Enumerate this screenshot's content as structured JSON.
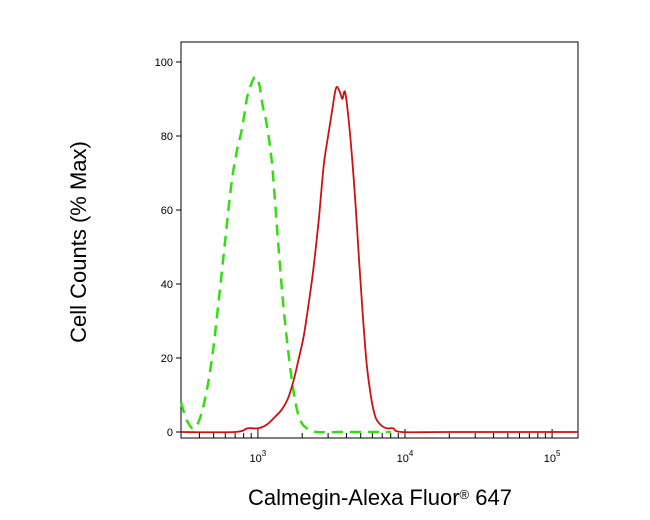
{
  "chart_data": {
    "type": "line",
    "title": "",
    "xlabel": "Calmegin-Alexa Fluor",
    "xlabel_mark": "®",
    "xlabel_suffix": " 647",
    "ylabel": "Cell Counts (% Max)",
    "x_scale": "log",
    "xlim": [
      300,
      150000
    ],
    "ylim": [
      0,
      100
    ],
    "y_ticks": [
      0,
      20,
      40,
      60,
      80,
      100
    ],
    "x_major_ticks": [
      {
        "value": 1000,
        "base": "10",
        "exp": "3"
      },
      {
        "value": 10000,
        "base": "10",
        "exp": "4"
      },
      {
        "value": 100000,
        "base": "10",
        "exp": "5"
      }
    ],
    "grid": false,
    "legend": "none",
    "series": [
      {
        "color": "#33dd11",
        "style": "dashed",
        "points": [
          [
            300,
            8
          ],
          [
            330,
            3
          ],
          [
            370,
            1
          ],
          [
            420,
            6
          ],
          [
            480,
            18
          ],
          [
            540,
            35
          ],
          [
            600,
            52
          ],
          [
            660,
            67
          ],
          [
            720,
            76
          ],
          [
            780,
            82
          ],
          [
            840,
            90
          ],
          [
            900,
            94
          ],
          [
            960,
            96
          ],
          [
            1020,
            94
          ],
          [
            1080,
            88
          ],
          [
            1150,
            83
          ],
          [
            1250,
            72
          ],
          [
            1380,
            50
          ],
          [
            1500,
            33
          ],
          [
            1650,
            18
          ],
          [
            1800,
            8
          ],
          [
            1950,
            3
          ],
          [
            2150,
            1
          ],
          [
            2500,
            0
          ],
          [
            4000,
            0
          ],
          [
            8000,
            0
          ]
        ]
      },
      {
        "color": "#cc1111",
        "style": "solid",
        "points": [
          [
            300,
            0
          ],
          [
            700,
            0
          ],
          [
            850,
            1
          ],
          [
            1000,
            1
          ],
          [
            1150,
            2
          ],
          [
            1300,
            4
          ],
          [
            1450,
            6
          ],
          [
            1600,
            9
          ],
          [
            1750,
            14
          ],
          [
            1900,
            20
          ],
          [
            2050,
            26
          ],
          [
            2200,
            34
          ],
          [
            2400,
            45
          ],
          [
            2600,
            58
          ],
          [
            2800,
            72
          ],
          [
            3000,
            80
          ],
          [
            3200,
            87
          ],
          [
            3400,
            93
          ],
          [
            3600,
            92
          ],
          [
            3750,
            90
          ],
          [
            3900,
            92
          ],
          [
            4100,
            86
          ],
          [
            4350,
            75
          ],
          [
            4600,
            62
          ],
          [
            4900,
            45
          ],
          [
            5200,
            30
          ],
          [
            5500,
            18
          ],
          [
            5900,
            9
          ],
          [
            6300,
            4
          ],
          [
            6800,
            2
          ],
          [
            7500,
            1
          ],
          [
            8300,
            1
          ],
          [
            9500,
            0
          ],
          [
            20000,
            0
          ],
          [
            150000,
            0
          ]
        ]
      }
    ]
  }
}
